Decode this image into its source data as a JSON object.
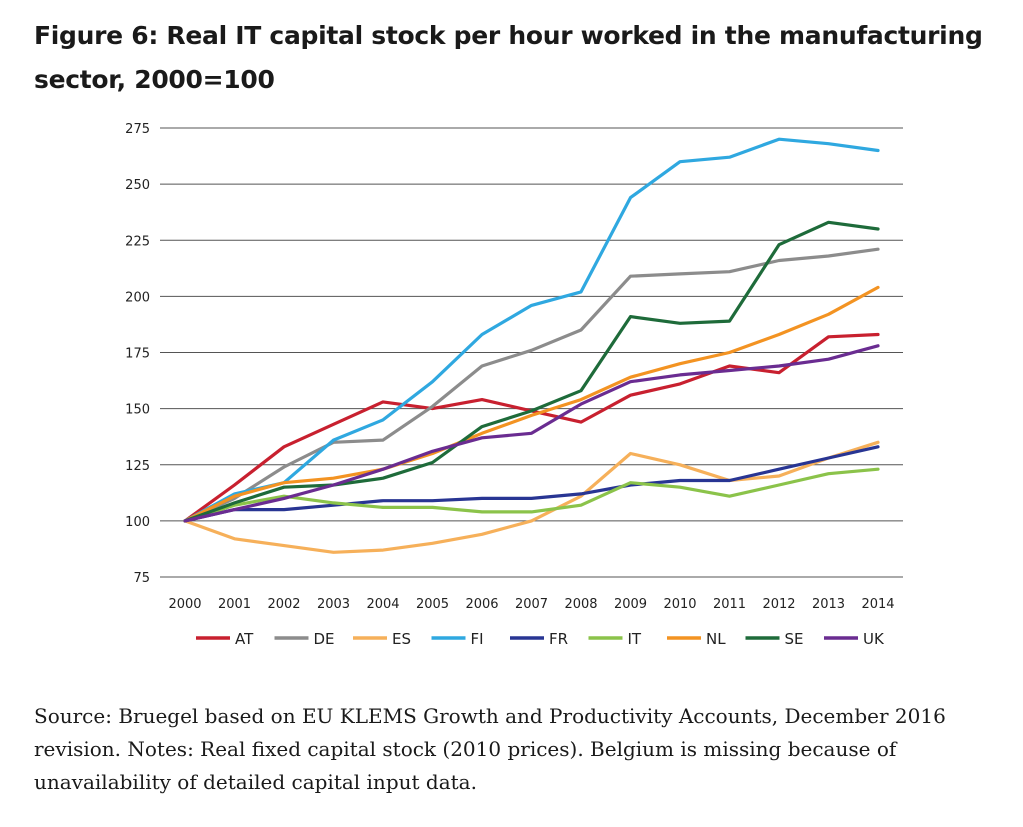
{
  "figure": {
    "title": "Figure 6: Real IT capital stock per hour worked in the manufacturing sector, 2000=100",
    "caption": "Source: Bruegel based on EU KLEMS Growth and Productivity Accounts, December 2016 revision. Notes: Real fixed capital stock (2010 prices). Belgium is missing because of unavailability of detailed capital input data."
  },
  "chart_data": {
    "type": "line",
    "title": "Figure 6: Real IT capital stock per hour worked in the manufacturing sector, 2000=100",
    "xlabel": "",
    "ylabel": "",
    "x": [
      "2000",
      "2001",
      "2002",
      "2003",
      "2004",
      "2005",
      "2006",
      "2007",
      "2008",
      "2009",
      "2010",
      "2011",
      "2012",
      "2013",
      "2014"
    ],
    "ylim": [
      75,
      275
    ],
    "yticks": [
      75,
      100,
      125,
      150,
      175,
      200,
      225,
      250,
      275
    ],
    "grid": true,
    "legend_position": "bottom",
    "series": [
      {
        "name": "AT",
        "color": "#c8202f",
        "values": [
          100,
          116,
          133,
          143,
          153,
          150,
          154,
          149,
          144,
          156,
          161,
          169,
          166,
          182,
          183
        ]
      },
      {
        "name": "DE",
        "color": "#8c8c8c",
        "values": [
          100,
          110,
          124,
          135,
          136,
          151,
          169,
          176,
          185,
          209,
          210,
          211,
          216,
          218,
          221
        ]
      },
      {
        "name": "ES",
        "color": "#f6b05a",
        "values": [
          100,
          92,
          89,
          86,
          87,
          90,
          94,
          100,
          111,
          130,
          125,
          118,
          120,
          128,
          135
        ]
      },
      {
        "name": "FI",
        "color": "#2fa8e0",
        "values": [
          100,
          112,
          117,
          136,
          145,
          162,
          183,
          196,
          202,
          244,
          260,
          262,
          270,
          268,
          265
        ]
      },
      {
        "name": "FR",
        "color": "#283593",
        "values": [
          100,
          105,
          105,
          107,
          109,
          109,
          110,
          110,
          112,
          116,
          118,
          118,
          123,
          128,
          133
        ]
      },
      {
        "name": "IT",
        "color": "#8bc34a",
        "values": [
          100,
          107,
          111,
          108,
          106,
          106,
          104,
          104,
          107,
          117,
          115,
          111,
          116,
          121,
          123
        ]
      },
      {
        "name": "NL",
        "color": "#f39322",
        "values": [
          100,
          111,
          117,
          119,
          123,
          130,
          139,
          147,
          154,
          164,
          170,
          175,
          183,
          192,
          204
        ]
      },
      {
        "name": "SE",
        "color": "#1e6b3a",
        "values": [
          100,
          108,
          115,
          116,
          119,
          126,
          142,
          149,
          158,
          191,
          188,
          189,
          223,
          233,
          230
        ]
      },
      {
        "name": "UK",
        "color": "#6a2c91",
        "values": [
          100,
          105,
          110,
          116,
          123,
          131,
          137,
          139,
          152,
          162,
          165,
          167,
          169,
          172,
          178
        ]
      }
    ]
  }
}
